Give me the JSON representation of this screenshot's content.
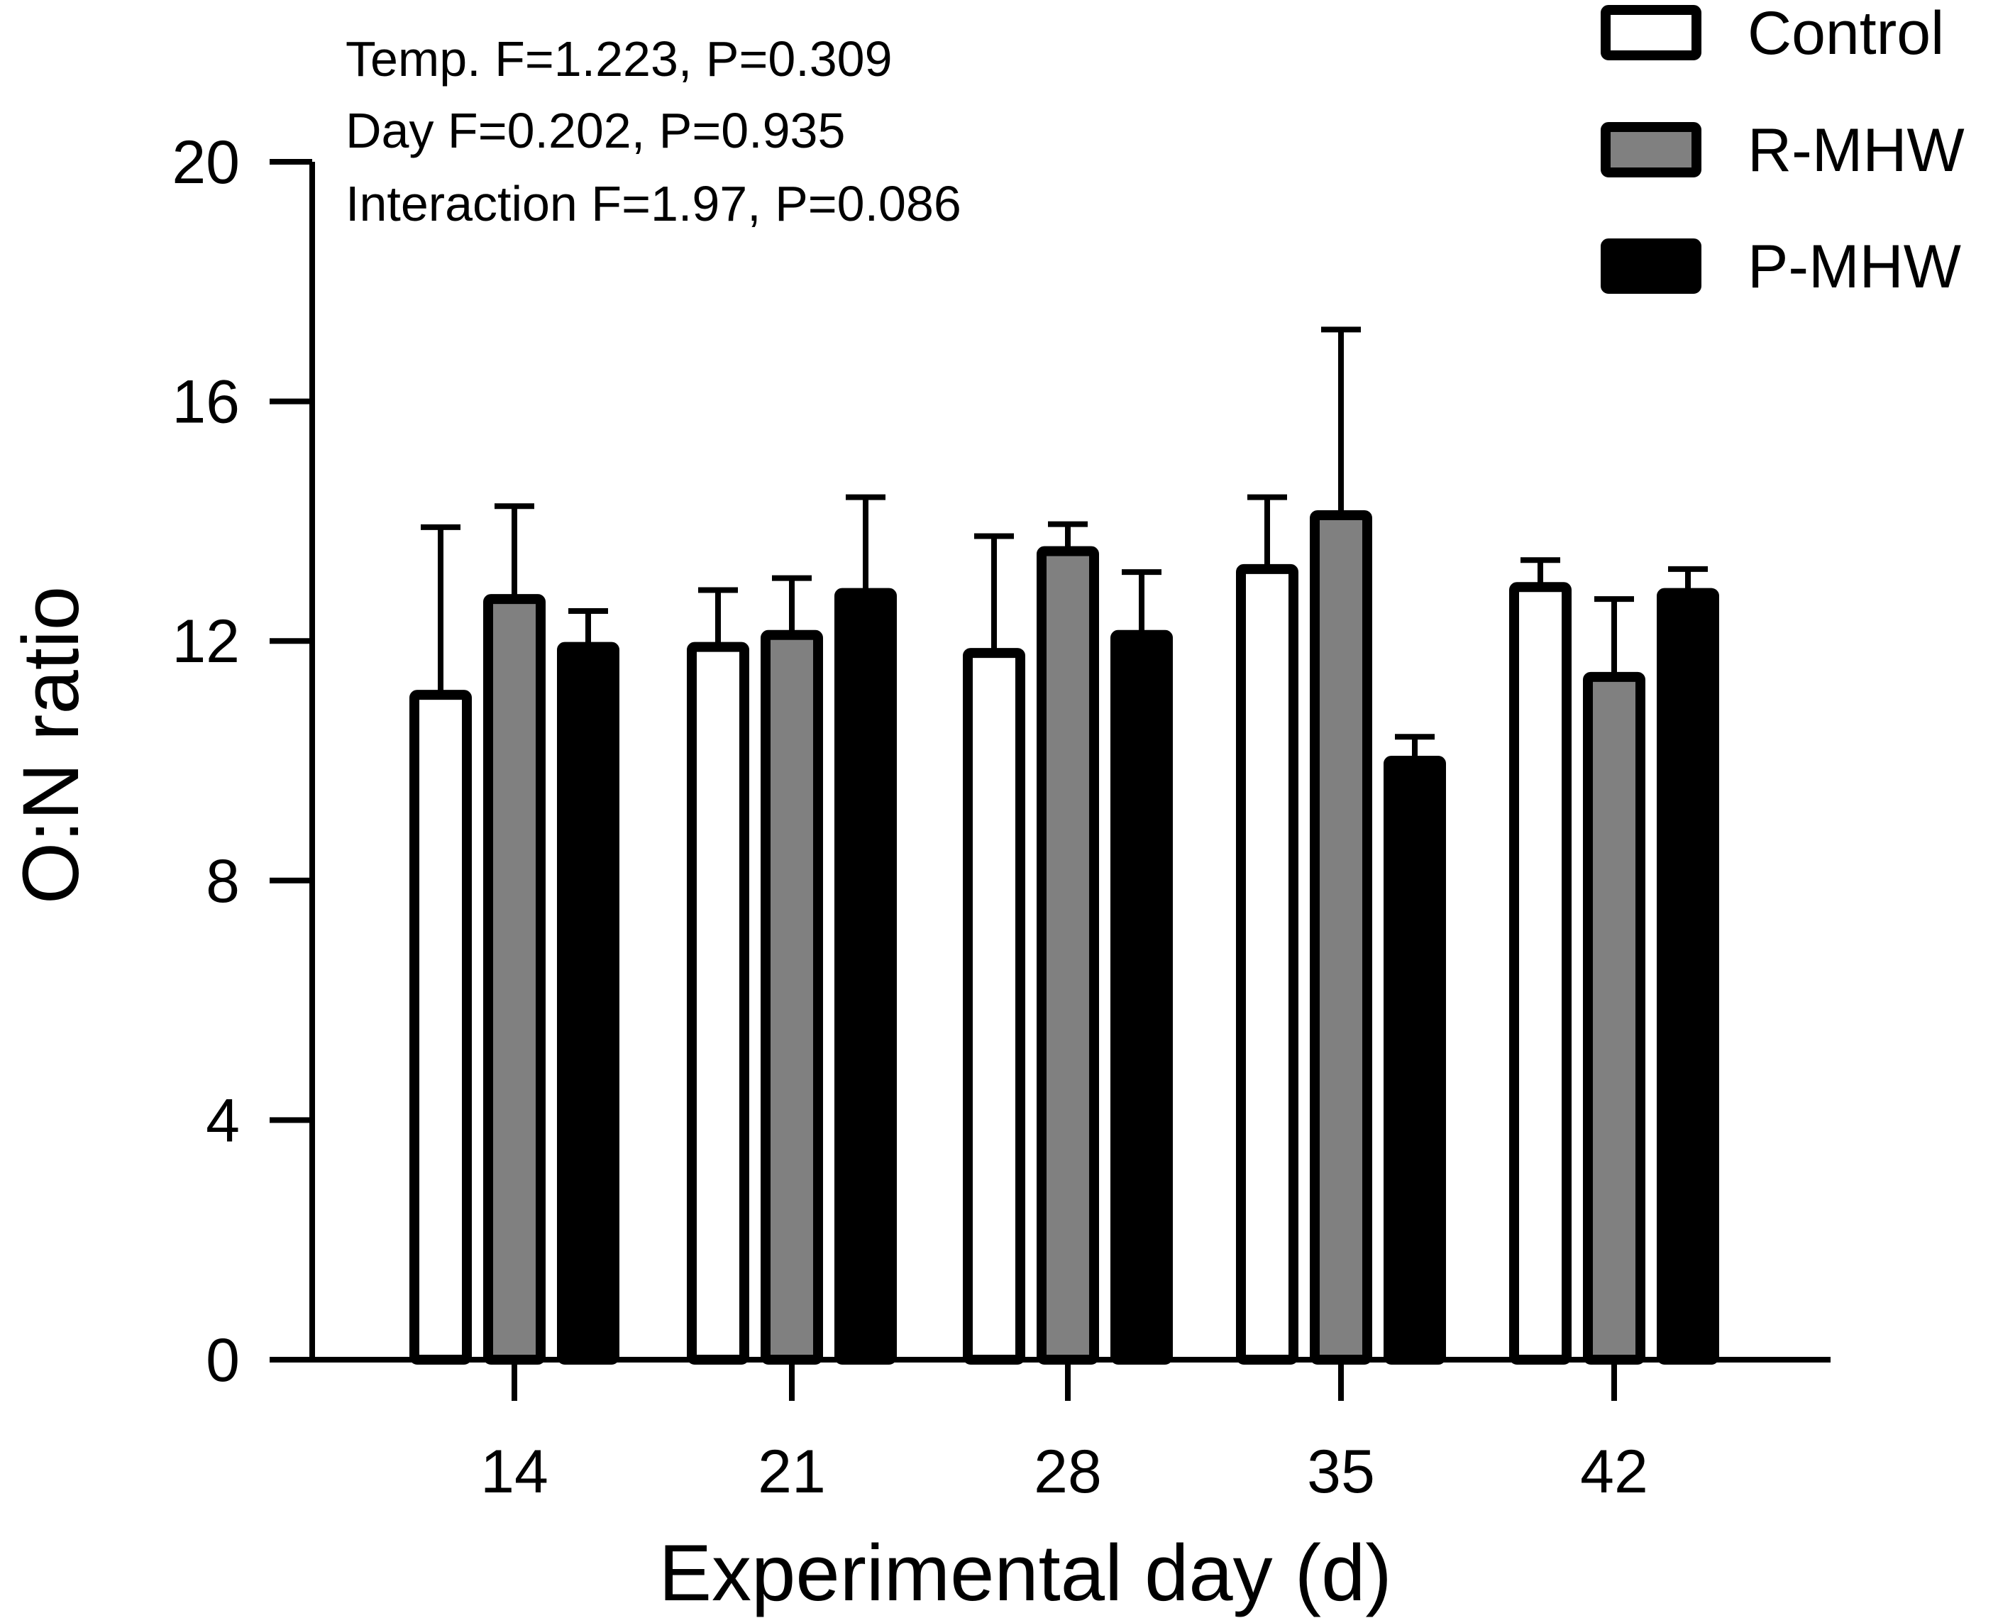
{
  "chart_data": {
    "type": "bar",
    "title": "",
    "xlabel": "Experimental day (d)",
    "ylabel": "O:N ratio",
    "categories": [
      "14",
      "21",
      "28",
      "35",
      "42"
    ],
    "ylim": [
      0,
      20
    ],
    "yticks": [
      "0",
      "4",
      "8",
      "12",
      "16",
      "20"
    ],
    "grid": false,
    "legend_position": "top-right",
    "series": [
      {
        "name": "Control",
        "color": "#ffffff",
        "values": [
          11.1,
          11.9,
          11.8,
          13.2,
          12.9
        ],
        "errors": [
          2.8,
          0.95,
          1.95,
          1.2,
          0.45
        ]
      },
      {
        "name": "R-MHW",
        "color": "#808080",
        "values": [
          12.7,
          12.1,
          13.5,
          14.1,
          11.4
        ],
        "errors": [
          1.55,
          0.95,
          0.45,
          3.1,
          1.3
        ]
      },
      {
        "name": "P-MHW",
        "color": "#000000",
        "values": [
          11.9,
          12.8,
          12.1,
          10.0,
          12.8
        ],
        "errors": [
          0.6,
          1.6,
          1.05,
          0.4,
          0.4
        ]
      }
    ],
    "annotations": [
      "Temp. F=1.223, P=0.309",
      "Day F=0.202, P=0.935",
      "Interaction F=1.97, P=0.086"
    ]
  }
}
